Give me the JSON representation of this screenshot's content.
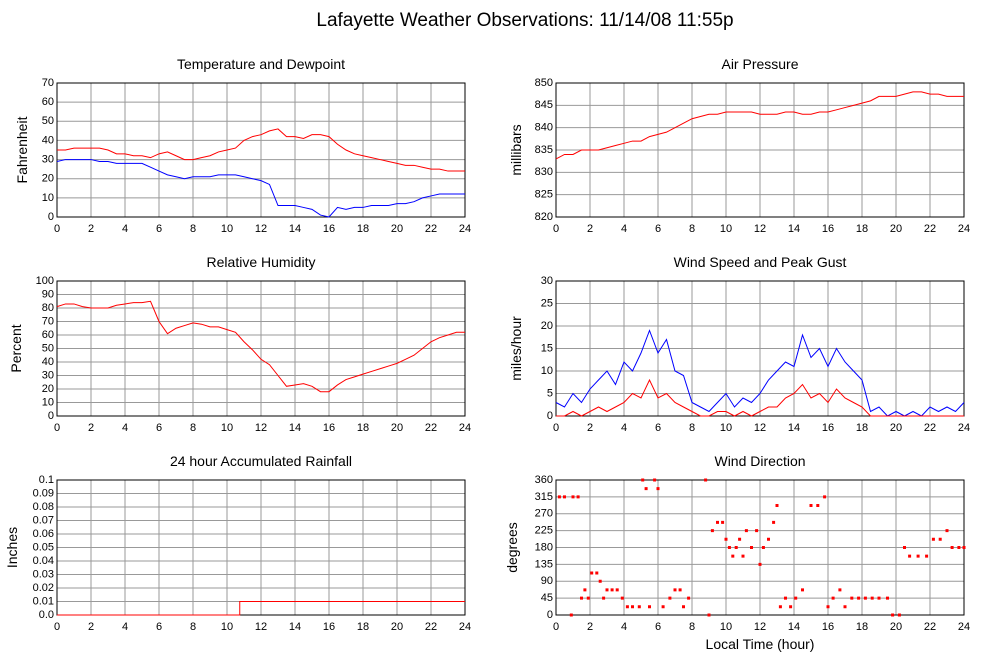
{
  "title": "Lafayette Weather Observations: 11/14/08 11:55p",
  "chart_data": [
    {
      "type": "line",
      "title": "Temperature and Dewpoint",
      "ylabel": "Fahrenheit",
      "x": [
        0,
        0.5,
        1,
        1.5,
        2,
        2.5,
        3,
        3.5,
        4,
        4.5,
        5,
        5.5,
        6,
        6.5,
        7,
        7.5,
        8,
        8.5,
        9,
        9.5,
        10,
        10.5,
        11,
        11.5,
        12,
        12.5,
        13,
        13.5,
        14,
        14.5,
        15,
        15.5,
        16,
        16.5,
        17,
        17.5,
        18,
        18.5,
        19,
        19.5,
        20,
        20.5,
        21,
        21.5,
        22,
        22.5,
        23,
        23.5,
        24
      ],
      "series": [
        {
          "color": "#ff0000",
          "values": [
            35,
            35,
            36,
            36,
            36,
            36,
            35,
            33,
            33,
            32,
            32,
            31,
            33,
            34,
            32,
            30,
            30,
            31,
            32,
            34,
            35,
            36,
            40,
            42,
            43,
            45,
            46,
            42,
            42,
            41,
            43,
            43,
            42,
            38,
            35,
            33,
            32,
            31,
            30,
            29,
            28,
            27,
            27,
            26,
            25,
            25,
            24,
            24,
            24
          ]
        },
        {
          "color": "#0000ff",
          "values": [
            29,
            30,
            30,
            30,
            30,
            29,
            29,
            28,
            28,
            28,
            28,
            26,
            24,
            22,
            21,
            20,
            21,
            21,
            21,
            22,
            22,
            22,
            21,
            20,
            19,
            17,
            6,
            6,
            6,
            5,
            4,
            1,
            0,
            5,
            4,
            5,
            5,
            6,
            6,
            6,
            7,
            7,
            8,
            10,
            11,
            12,
            12,
            12,
            12
          ]
        }
      ],
      "xlim": [
        0,
        24
      ],
      "xticks": [
        0,
        2,
        4,
        6,
        8,
        10,
        12,
        14,
        16,
        18,
        20,
        22,
        24
      ],
      "ylim": [
        0,
        70
      ],
      "yticks": [
        0,
        10,
        20,
        30,
        40,
        50,
        60,
        70
      ],
      "grid": true
    },
    {
      "type": "line",
      "title": "Air Pressure",
      "ylabel": "millibars",
      "x": [
        0,
        0.5,
        1,
        1.5,
        2,
        2.5,
        3,
        3.5,
        4,
        4.5,
        5,
        5.5,
        6,
        6.5,
        7,
        7.5,
        8,
        8.5,
        9,
        9.5,
        10,
        10.5,
        11,
        11.5,
        12,
        12.5,
        13,
        13.5,
        14,
        14.5,
        15,
        15.5,
        16,
        16.5,
        17,
        17.5,
        18,
        18.5,
        19,
        19.5,
        20,
        20.5,
        21,
        21.5,
        22,
        22.5,
        23,
        23.5,
        24
      ],
      "series": [
        {
          "color": "#ff0000",
          "values": [
            833,
            834,
            834,
            835,
            835,
            835,
            835.5,
            836,
            836.5,
            837,
            837,
            838,
            838.5,
            839,
            840,
            841,
            842,
            842.5,
            843,
            843,
            843.5,
            843.5,
            843.5,
            843.5,
            843,
            843,
            843,
            843.5,
            843.5,
            843,
            843,
            843.5,
            843.5,
            844,
            844.5,
            845,
            845.5,
            846,
            847,
            847,
            847,
            847.5,
            848,
            848,
            847.5,
            847.5,
            847,
            847,
            847
          ]
        }
      ],
      "xlim": [
        0,
        24
      ],
      "xticks": [
        0,
        2,
        4,
        6,
        8,
        10,
        12,
        14,
        16,
        18,
        20,
        22,
        24
      ],
      "ylim": [
        820,
        850
      ],
      "yticks": [
        820,
        825,
        830,
        835,
        840,
        845,
        850
      ],
      "grid": true
    },
    {
      "type": "line",
      "title": "Relative Humidity",
      "ylabel": "Percent",
      "x": [
        0,
        0.5,
        1,
        1.5,
        2,
        2.5,
        3,
        3.5,
        4,
        4.5,
        5,
        5.5,
        6,
        6.5,
        7,
        7.5,
        8,
        8.5,
        9,
        9.5,
        10,
        10.5,
        11,
        11.5,
        12,
        12.5,
        13,
        13.5,
        14,
        14.5,
        15,
        15.5,
        16,
        16.5,
        17,
        17.5,
        18,
        18.5,
        19,
        19.5,
        20,
        20.5,
        21,
        21.5,
        22,
        22.5,
        23,
        23.5,
        24
      ],
      "series": [
        {
          "color": "#ff0000",
          "values": [
            81,
            83,
            83,
            81,
            80,
            80,
            80,
            82,
            83,
            84,
            84,
            85,
            70,
            61,
            65,
            67,
            69,
            68,
            66,
            66,
            64,
            62,
            55,
            49,
            42,
            38,
            30,
            22,
            23,
            24,
            22,
            18,
            18,
            23,
            27,
            29,
            31,
            33,
            35,
            37,
            39,
            42,
            45,
            50,
            55,
            58,
            60,
            62,
            62
          ]
        }
      ],
      "xlim": [
        0,
        24
      ],
      "xticks": [
        0,
        2,
        4,
        6,
        8,
        10,
        12,
        14,
        16,
        18,
        20,
        22,
        24
      ],
      "ylim": [
        0,
        100
      ],
      "yticks": [
        0,
        10,
        20,
        30,
        40,
        50,
        60,
        70,
        80,
        90,
        100
      ],
      "grid": true
    },
    {
      "type": "line",
      "title": "Wind Speed and Peak Gust",
      "ylabel": "miles/hour",
      "x": [
        0,
        0.5,
        1,
        1.5,
        2,
        2.5,
        3,
        3.5,
        4,
        4.5,
        5,
        5.5,
        6,
        6.5,
        7,
        7.5,
        8,
        8.5,
        9,
        9.5,
        10,
        10.5,
        11,
        11.5,
        12,
        12.5,
        13,
        13.5,
        14,
        14.5,
        15,
        15.5,
        16,
        16.5,
        17,
        17.5,
        18,
        18.5,
        19,
        19.5,
        20,
        20.5,
        21,
        21.5,
        22,
        22.5,
        23,
        23.5,
        24
      ],
      "series": [
        {
          "color": "#0000ff",
          "values": [
            3,
            2,
            5,
            3,
            6,
            8,
            10,
            7,
            12,
            10,
            14,
            19,
            14,
            17,
            10,
            9,
            3,
            2,
            1,
            3,
            5,
            2,
            4,
            3,
            5,
            8,
            10,
            12,
            11,
            18,
            13,
            15,
            11,
            15,
            12,
            10,
            8,
            1,
            2,
            0,
            1,
            0,
            1,
            0,
            2,
            1,
            2,
            1,
            3
          ]
        },
        {
          "color": "#ff0000",
          "values": [
            0,
            0,
            1,
            0,
            1,
            2,
            1,
            2,
            3,
            5,
            4,
            8,
            4,
            5,
            3,
            2,
            1,
            0,
            0,
            1,
            1,
            0,
            1,
            0,
            1,
            2,
            2,
            4,
            5,
            7,
            4,
            5,
            3,
            6,
            4,
            3,
            2,
            0,
            0,
            0,
            0,
            0,
            0,
            0,
            0,
            0,
            0,
            0,
            0
          ]
        }
      ],
      "xlim": [
        0,
        24
      ],
      "xticks": [
        0,
        2,
        4,
        6,
        8,
        10,
        12,
        14,
        16,
        18,
        20,
        22,
        24
      ],
      "ylim": [
        0,
        30
      ],
      "yticks": [
        0,
        5,
        10,
        15,
        20,
        25,
        30
      ],
      "grid": true
    },
    {
      "type": "line",
      "title": "24 hour Accumulated Rainfall",
      "ylabel": "Inches",
      "x": [
        0,
        10.75,
        10.75,
        24
      ],
      "series": [
        {
          "color": "#ff0000",
          "values": [
            0,
            0,
            0.01,
            0.01
          ]
        }
      ],
      "xlim": [
        0,
        24
      ],
      "xticks": [
        0,
        2,
        4,
        6,
        8,
        10,
        12,
        14,
        16,
        18,
        20,
        22,
        24
      ],
      "ylim": [
        0,
        0.1
      ],
      "yticks": [
        {
          "value": 0,
          "label": "0.0"
        },
        0.01,
        0.02,
        0.03,
        0.04,
        0.05,
        0.06,
        0.07,
        0.08,
        0.09,
        0.1
      ],
      "grid": true
    },
    {
      "type": "scatter",
      "title": "Wind Direction",
      "ylabel": "degrees",
      "xlabel": "Local Time (hour)",
      "x": [
        0.2,
        0.5,
        1,
        1.3,
        0.9,
        1.5,
        1.7,
        1.9,
        2.1,
        2.4,
        2.6,
        2.8,
        3,
        3.3,
        3.6,
        3.9,
        4.2,
        4.5,
        4.9,
        5.1,
        5.3,
        5.5,
        5.8,
        6,
        6.3,
        6.7,
        7,
        7.3,
        7.5,
        7.8,
        8.8,
        9,
        9.2,
        9.5,
        9.8,
        10,
        10.2,
        10.4,
        10.6,
        10.8,
        11,
        11.2,
        11.5,
        11.8,
        12,
        12.2,
        12.5,
        12.8,
        13,
        13.2,
        13.5,
        13.8,
        14.1,
        14.5,
        15,
        15.4,
        15.8,
        16,
        16.3,
        16.7,
        17,
        17.4,
        17.8,
        18.2,
        18.6,
        19,
        19.5,
        19.8,
        20.2,
        20.5,
        20.8,
        21.3,
        21.8,
        22.2,
        22.6,
        23,
        23.3,
        23.7,
        24
      ],
      "series": [
        {
          "color": "#ff0000",
          "values": [
            315,
            315,
            315,
            315,
            0,
            45,
            67,
            45,
            112,
            112,
            90,
            45,
            67,
            67,
            67,
            45,
            22,
            22,
            22,
            360,
            337,
            22,
            360,
            337,
            22,
            45,
            67,
            67,
            22,
            45,
            360,
            0,
            225,
            247,
            247,
            202,
            180,
            157,
            180,
            202,
            157,
            225,
            180,
            225,
            135,
            180,
            202,
            247,
            292,
            22,
            45,
            22,
            45,
            67,
            292,
            292,
            315,
            22,
            45,
            67,
            22,
            45,
            45,
            45,
            45,
            45,
            45,
            0,
            0,
            180,
            157,
            157,
            157,
            202,
            202,
            225,
            180,
            180,
            180
          ]
        }
      ],
      "xlim": [
        0,
        24
      ],
      "xticks": [
        0,
        2,
        4,
        6,
        8,
        10,
        12,
        14,
        16,
        18,
        20,
        22,
        24
      ],
      "ylim": [
        0,
        360
      ],
      "yticks": [
        0,
        45,
        90,
        135,
        180,
        225,
        270,
        315,
        360
      ],
      "grid": true
    }
  ]
}
